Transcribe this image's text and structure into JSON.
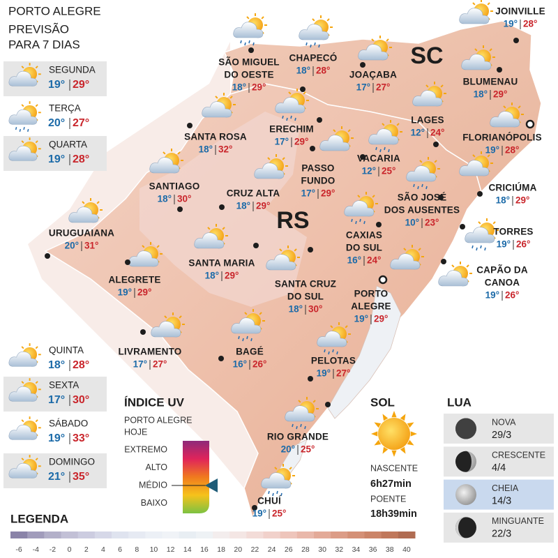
{
  "header": {
    "title": "PORTO ALEGRE",
    "subtitle": [
      "PREVISÃO",
      "PARA 7 DIAS"
    ]
  },
  "days": [
    {
      "name": "SEGUNDA",
      "min": "19°",
      "max": "29°"
    },
    {
      "name": "TERÇA",
      "min": "20°",
      "max": "27°"
    },
    {
      "name": "QUARTA",
      "min": "19°",
      "max": "28°"
    },
    {
      "name": "QUINTA",
      "min": "18°",
      "max": "28°"
    },
    {
      "name": "SEXTA",
      "min": "17°",
      "max": "30°"
    },
    {
      "name": "SÁBADO",
      "min": "19°",
      "max": "33°"
    },
    {
      "name": "DOMINGO",
      "min": "21°",
      "max": "35°"
    }
  ],
  "map": {
    "states": [
      "SC",
      "RS"
    ],
    "cities": [
      {
        "name": [
          "SÃO MIGUEL",
          "DO OESTE"
        ],
        "min": "18°",
        "max": "29°"
      },
      {
        "name": [
          "CHAPECÓ"
        ],
        "min": "18°",
        "max": "28°"
      },
      {
        "name": [
          "JOAÇABA"
        ],
        "min": "17°",
        "max": "27°"
      },
      {
        "name": [
          "JOINVILLE"
        ],
        "min": "19°",
        "max": "28°"
      },
      {
        "name": [
          "BLUMENAU"
        ],
        "min": "18°",
        "max": "29°"
      },
      {
        "name": [
          "LAGES"
        ],
        "min": "12°",
        "max": "24°"
      },
      {
        "name": [
          "FLORIANÓPOLIS"
        ],
        "min": "19°",
        "max": "28°"
      },
      {
        "name": [
          "SANTA ROSA"
        ],
        "min": "18°",
        "max": "32°"
      },
      {
        "name": [
          "ERECHIM"
        ],
        "min": "17°",
        "max": "29°"
      },
      {
        "name": [
          "VACARIA"
        ],
        "min": "12°",
        "max": "25°"
      },
      {
        "name": [
          "PASSO",
          "FUNDO"
        ],
        "min": "17°",
        "max": "29°"
      },
      {
        "name": [
          "SANTIAGO"
        ],
        "min": "18°",
        "max": "30°"
      },
      {
        "name": [
          "CRUZ ALTA"
        ],
        "min": "18°",
        "max": "29°"
      },
      {
        "name": [
          "SÃO JOSÉ",
          "DOS AUSENTES"
        ],
        "min": "10°",
        "max": "23°"
      },
      {
        "name": [
          "CRICIÚMA"
        ],
        "min": "18°",
        "max": "29°"
      },
      {
        "name": [
          "URUGUAIANA"
        ],
        "min": "20°",
        "max": "31°"
      },
      {
        "name": [
          "CAXIAS",
          "DO SUL"
        ],
        "min": "16°",
        "max": "24°"
      },
      {
        "name": [
          "TORRES"
        ],
        "min": "19°",
        "max": "26°"
      },
      {
        "name": [
          "SANTA MARIA"
        ],
        "min": "18°",
        "max": "29°"
      },
      {
        "name": [
          "ALEGRETE"
        ],
        "min": "19°",
        "max": "29°"
      },
      {
        "name": [
          "SANTA CRUZ",
          "DO SUL"
        ],
        "min": "18°",
        "max": "30°"
      },
      {
        "name": [
          "CAPÃO DA",
          "CANOA"
        ],
        "min": "19°",
        "max": "26°"
      },
      {
        "name": [
          "PORTO",
          "ALEGRE"
        ],
        "min": "19°",
        "max": "29°"
      },
      {
        "name": [
          "LIVRAMENTO"
        ],
        "min": "17°",
        "max": "27°"
      },
      {
        "name": [
          "BAGÉ"
        ],
        "min": "16°",
        "max": "26°"
      },
      {
        "name": [
          "PELOTAS"
        ],
        "min": "19°",
        "max": "27°"
      },
      {
        "name": [
          "RIO GRANDE"
        ],
        "min": "20°",
        "max": "25°"
      },
      {
        "name": [
          "CHUÍ"
        ],
        "min": "19°",
        "max": "25°"
      }
    ]
  },
  "uv": {
    "title": "ÍNDICE UV",
    "subtitle": [
      "PORTO ALEGRE",
      "HOJE"
    ],
    "levels": [
      "EXTREMO",
      "ALTO",
      "MÉDIO",
      "BAIXO"
    ]
  },
  "sun": {
    "title": "SOL",
    "rise_label": "NASCENTE",
    "rise": "6h27min",
    "set_label": "POENTE",
    "set": "18h39min"
  },
  "moon": {
    "title": "LUA",
    "phases": [
      {
        "name": "NOVA",
        "date": "29/3"
      },
      {
        "name": "CRESCENTE",
        "date": "4/4"
      },
      {
        "name": "CHEIA",
        "date": "14/3"
      },
      {
        "name": "MINGUANTE",
        "date": "22/3"
      }
    ]
  },
  "legend": {
    "title": "LEGENDA",
    "scale": [
      -6,
      -4,
      -2,
      0,
      2,
      4,
      6,
      8,
      10,
      12,
      14,
      16,
      18,
      20,
      22,
      24,
      26,
      28,
      30,
      32,
      34,
      36,
      38,
      40
    ],
    "colors": [
      "#8a83a8",
      "#a19cbb",
      "#b3b0c9",
      "#c2c0d6",
      "#cccce0",
      "#d6d8e8",
      "#dfe3ef",
      "#e6eaf3",
      "#ecf0f6",
      "#f0f3f7",
      "#e8eef3",
      "#eef2f5",
      "#f3eded",
      "#f4e6e4",
      "#f3dcd8",
      "#f1d1cb",
      "#eec5bb",
      "#e9b8aa",
      "#e3aa98",
      "#dc9c86",
      "#d49076",
      "#cb8468",
      "#c0785b",
      "#b06c52"
    ]
  }
}
